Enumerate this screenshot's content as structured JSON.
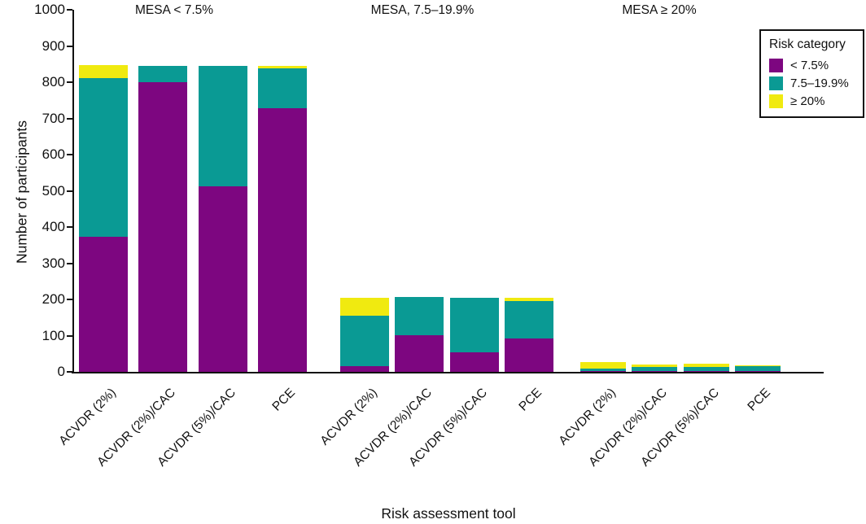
{
  "figure": {
    "y_axis_title": "Number of participants",
    "x_axis_title": "Risk assessment tool"
  },
  "legend": {
    "title": "Risk category",
    "items": [
      {
        "label": "< 7.5%",
        "color": "#7D0680"
      },
      {
        "label": "7.5–19.9%",
        "color": "#0A9A94"
      },
      {
        "label": "≥ 20%",
        "color": "#F0EA10"
      }
    ]
  },
  "chart_data": {
    "type": "bar",
    "stacked": true,
    "title": "",
    "xlabel": "Risk assessment tool",
    "ylabel": "Number of participants",
    "ylim": [
      0,
      1000
    ],
    "ytick_step": 100,
    "grid": false,
    "legend_position": "top-right",
    "legend_title": "Risk category",
    "series_names": [
      "< 7.5%",
      "7.5–19.9%",
      "≥ 20%"
    ],
    "series_colors": [
      "#7D0680",
      "#0A9A94",
      "#F0EA10"
    ],
    "categories": [
      "ACVDR (2%)",
      "ACVDR (2%)/CAC",
      "ACVDR (5%)/CAC",
      "PCE"
    ],
    "groups": [
      {
        "title": "MESA < 7.5%",
        "categories": [
          "ACVDR (2%)",
          "ACVDR (2%)/CAC",
          "ACVDR (5%)/CAC",
          "PCE"
        ],
        "values": [
          [
            372,
            438,
            35
          ],
          [
            800,
            45,
            0
          ],
          [
            513,
            332,
            0
          ],
          [
            727,
            111,
            7
          ]
        ]
      },
      {
        "title": "MESA, 7.5–19.9%",
        "categories": [
          "ACVDR (2%)",
          "ACVDR (2%)/CAC",
          "ACVDR (5%)/CAC",
          "PCE"
        ],
        "values": [
          [
            15,
            140,
            50
          ],
          [
            100,
            105,
            0
          ],
          [
            55,
            150,
            0
          ],
          [
            92,
            103,
            10
          ]
        ]
      },
      {
        "title": "MESA ≥ 20%",
        "categories": [
          "ACVDR (2%)",
          "ACVDR (2%)/CAC",
          "ACVDR (5%)/CAC",
          "PCE"
        ],
        "values": [
          [
            2,
            6,
            17
          ],
          [
            2,
            12,
            7
          ],
          [
            2,
            11,
            8
          ],
          [
            3,
            14,
            2
          ]
        ]
      }
    ]
  }
}
